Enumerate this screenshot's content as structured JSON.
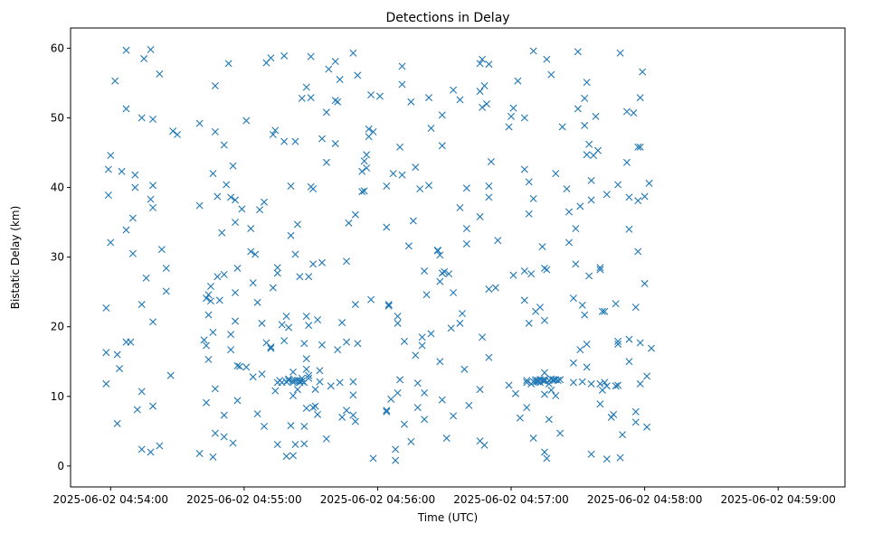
{
  "chart_data": {
    "type": "scatter",
    "title": "Detections in Delay",
    "xlabel": "Time (UTC)",
    "ylabel": "Bistatic Delay (km)",
    "x_unit": "seconds after 2025-06-02 04:54:00",
    "xlim": [
      -18,
      330
    ],
    "ylim": [
      -3,
      62.9
    ],
    "marker": "x",
    "color": "#1f77b4",
    "grid": false,
    "legend": "none",
    "x_ticks": [
      {
        "value": 0,
        "label": "2025-06-02 04:54:00"
      },
      {
        "value": 60,
        "label": "2025-06-02 04:55:00"
      },
      {
        "value": 120,
        "label": "2025-06-02 04:56:00"
      },
      {
        "value": 180,
        "label": "2025-06-02 04:57:00"
      },
      {
        "value": 240,
        "label": "2025-06-02 04:58:00"
      },
      {
        "value": 300,
        "label": "2025-06-02 04:59:00"
      }
    ],
    "y_ticks": [
      {
        "value": 0,
        "label": "0"
      },
      {
        "value": 10,
        "label": "10"
      },
      {
        "value": 20,
        "label": "20"
      },
      {
        "value": 30,
        "label": "30"
      },
      {
        "value": 40,
        "label": "40"
      },
      {
        "value": 50,
        "label": "50"
      },
      {
        "value": 60,
        "label": "60"
      }
    ],
    "points": [
      [
        -2,
        22.7
      ],
      [
        -2,
        16.3
      ],
      [
        -2,
        11.8
      ],
      [
        -1,
        42.6
      ],
      [
        -1,
        38.9
      ],
      [
        0,
        44.6
      ],
      [
        0,
        32.1
      ],
      [
        2,
        55.3
      ],
      [
        3,
        16
      ],
      [
        3,
        6.1
      ],
      [
        4,
        14
      ],
      [
        5,
        42.3
      ],
      [
        7,
        59.7
      ],
      [
        7,
        51.3
      ],
      [
        7,
        33.9
      ],
      [
        7,
        17.8
      ],
      [
        9,
        17.8
      ],
      [
        10,
        35.6
      ],
      [
        10,
        30.5
      ],
      [
        11,
        41.8
      ],
      [
        11,
        40
      ],
      [
        12,
        8.1
      ],
      [
        14,
        50
      ],
      [
        14,
        23.2
      ],
      [
        14,
        10.7
      ],
      [
        14,
        2.4
      ],
      [
        15,
        58.5
      ],
      [
        16,
        27
      ],
      [
        18,
        59.8
      ],
      [
        18,
        38.3
      ],
      [
        18,
        2
      ],
      [
        19,
        40.3
      ],
      [
        19,
        37.1
      ],
      [
        19,
        49.8
      ],
      [
        19,
        20.7
      ],
      [
        19,
        8.6
      ],
      [
        22,
        56.3
      ],
      [
        22,
        2.9
      ],
      [
        23,
        31.1
      ],
      [
        25,
        28.4
      ],
      [
        25,
        25.1
      ],
      [
        27,
        13
      ],
      [
        28,
        48.1
      ],
      [
        30,
        47.6
      ],
      [
        40,
        49.2
      ],
      [
        40,
        37.4
      ],
      [
        40,
        1.8
      ],
      [
        42,
        18.1
      ],
      [
        43,
        9.1
      ],
      [
        43,
        17.3
      ],
      [
        43,
        24.1
      ],
      [
        44,
        24.6
      ],
      [
        44,
        21.7
      ],
      [
        44,
        15.3
      ],
      [
        45,
        25.8
      ],
      [
        45,
        23.7
      ],
      [
        46,
        42
      ],
      [
        46,
        19.2
      ],
      [
        46,
        1.3
      ],
      [
        47,
        54.6
      ],
      [
        47,
        48
      ],
      [
        47,
        11.1
      ],
      [
        47,
        4.7
      ],
      [
        48,
        38.7
      ],
      [
        48,
        27.2
      ],
      [
        49,
        23.8
      ],
      [
        50,
        33.5
      ],
      [
        51,
        46.1
      ],
      [
        51,
        27.5
      ],
      [
        51,
        7.3
      ],
      [
        51,
        4.2
      ],
      [
        52,
        40.4
      ],
      [
        53,
        57.8
      ],
      [
        54,
        38.6
      ],
      [
        54,
        18.9
      ],
      [
        54,
        16.7
      ],
      [
        55,
        43.1
      ],
      [
        55,
        3.3
      ],
      [
        56,
        38.2
      ],
      [
        56,
        35
      ],
      [
        56,
        24.9
      ],
      [
        56,
        20.8
      ],
      [
        57,
        28.4
      ],
      [
        57,
        9.4
      ],
      [
        57,
        14.4
      ],
      [
        58,
        14.3
      ],
      [
        59,
        36.9
      ],
      [
        61,
        49.6
      ],
      [
        61,
        14.2
      ],
      [
        63,
        34.1
      ],
      [
        63,
        30.8
      ],
      [
        64,
        26.3
      ],
      [
        64,
        12.8
      ],
      [
        65,
        30.4
      ],
      [
        66,
        23.5
      ],
      [
        66,
        7.5
      ],
      [
        67,
        36.8
      ],
      [
        68,
        13.2
      ],
      [
        68,
        20.5
      ],
      [
        69,
        37.9
      ],
      [
        69,
        5.7
      ],
      [
        70,
        57.9
      ],
      [
        70,
        17.7
      ],
      [
        72,
        58.6
      ],
      [
        72,
        17.1
      ],
      [
        72,
        16.9
      ],
      [
        73,
        47.6
      ],
      [
        73,
        25.6
      ],
      [
        74,
        48.2
      ],
      [
        74,
        10.8
      ],
      [
        75,
        28.5
      ],
      [
        75,
        27.7
      ],
      [
        75,
        3.1
      ],
      [
        75,
        12
      ],
      [
        76,
        12.3
      ],
      [
        77,
        12
      ],
      [
        77,
        20.3
      ],
      [
        78,
        58.9
      ],
      [
        78,
        46.6
      ],
      [
        78,
        18
      ],
      [
        79,
        21.5
      ],
      [
        79,
        12.1
      ],
      [
        79,
        1.4
      ],
      [
        80,
        19.9
      ],
      [
        80,
        12.5
      ],
      [
        80,
        12.3
      ],
      [
        81,
        40.2
      ],
      [
        81,
        33.1
      ],
      [
        81,
        5.8
      ],
      [
        82,
        12.3
      ],
      [
        82,
        12
      ],
      [
        82,
        13.5
      ],
      [
        82,
        10.1
      ],
      [
        82,
        1.5
      ],
      [
        83,
        46.6
      ],
      [
        83,
        30.4
      ],
      [
        83,
        12.3
      ],
      [
        83,
        3.1
      ],
      [
        84,
        34.7
      ],
      [
        84,
        12.3
      ],
      [
        84,
        11
      ],
      [
        85,
        27.2
      ],
      [
        85,
        12.2
      ],
      [
        85,
        12
      ],
      [
        86,
        52.8
      ],
      [
        86,
        12.6
      ],
      [
        86,
        12.2
      ],
      [
        87,
        17.6
      ],
      [
        87,
        12
      ],
      [
        87,
        5.7
      ],
      [
        87,
        3.2
      ],
      [
        88,
        54.4
      ],
      [
        88,
        21.5
      ],
      [
        88,
        15.4
      ],
      [
        88,
        13.9
      ],
      [
        88,
        8.3
      ],
      [
        89,
        27.2
      ],
      [
        89,
        20.2
      ],
      [
        89,
        13
      ],
      [
        89,
        12.6
      ],
      [
        90,
        58.8
      ],
      [
        90,
        52.9
      ],
      [
        90,
        40.1
      ],
      [
        91,
        39.8
      ],
      [
        91,
        29
      ],
      [
        91,
        8.4
      ],
      [
        92,
        11
      ],
      [
        92,
        8.6
      ],
      [
        93,
        21
      ],
      [
        93,
        7.4
      ],
      [
        94,
        13.7
      ],
      [
        94,
        12.1
      ],
      [
        95,
        47
      ],
      [
        95,
        29.2
      ],
      [
        95,
        17.4
      ],
      [
        97,
        50.8
      ],
      [
        97,
        43.6
      ],
      [
        97,
        3.9
      ],
      [
        98,
        57
      ],
      [
        99,
        11.5
      ],
      [
        101,
        52.5
      ],
      [
        101,
        58.1
      ],
      [
        101,
        46.3
      ],
      [
        102,
        52.3
      ],
      [
        102,
        16.7
      ],
      [
        103,
        55.5
      ],
      [
        103,
        12
      ],
      [
        104,
        20.6
      ],
      [
        104,
        7
      ],
      [
        106,
        29.4
      ],
      [
        106,
        8
      ],
      [
        106,
        17.8
      ],
      [
        107,
        34.9
      ],
      [
        109,
        59.3
      ],
      [
        109,
        12.1
      ],
      [
        109,
        10.2
      ],
      [
        109,
        7.3
      ],
      [
        110,
        23.2
      ],
      [
        110,
        6.4
      ],
      [
        110,
        36.1
      ],
      [
        111,
        56.1
      ],
      [
        111,
        17.6
      ],
      [
        113,
        42.3
      ],
      [
        113,
        39.4
      ],
      [
        114,
        39.5
      ],
      [
        114,
        43.8
      ],
      [
        115,
        44.7
      ],
      [
        115,
        42.8
      ],
      [
        116,
        48.4
      ],
      [
        116,
        47.3
      ],
      [
        117,
        53.3
      ],
      [
        117,
        23.9
      ],
      [
        118,
        48
      ],
      [
        118,
        1.1
      ],
      [
        121,
        53.1
      ],
      [
        124,
        40.2
      ],
      [
        124,
        34.3
      ],
      [
        124,
        8
      ],
      [
        124,
        7.8
      ],
      [
        125,
        23.2
      ],
      [
        125,
        23
      ],
      [
        126,
        9.6
      ],
      [
        127,
        42
      ],
      [
        128,
        2.4
      ],
      [
        128,
        0.8
      ],
      [
        129,
        21.5
      ],
      [
        129,
        20.5
      ],
      [
        129,
        10.5
      ],
      [
        130,
        45.8
      ],
      [
        130,
        12.4
      ],
      [
        131,
        57.4
      ],
      [
        131,
        54.8
      ],
      [
        131,
        41.8
      ],
      [
        132,
        17.9
      ],
      [
        132,
        6
      ],
      [
        134,
        31.6
      ],
      [
        135,
        52.3
      ],
      [
        135,
        3.5
      ],
      [
        136,
        35.2
      ],
      [
        137,
        42.9
      ],
      [
        137,
        15.9
      ],
      [
        138,
        11.9
      ],
      [
        138,
        8.4
      ],
      [
        139,
        39.8
      ],
      [
        140,
        17.3
      ],
      [
        140,
        18.5
      ],
      [
        141,
        10.5
      ],
      [
        141,
        28
      ],
      [
        141,
        6.7
      ],
      [
        142,
        24.6
      ],
      [
        143,
        52.9
      ],
      [
        143,
        40.3
      ],
      [
        144,
        48.5
      ],
      [
        144,
        19
      ],
      [
        147,
        31
      ],
      [
        147,
        30.9
      ],
      [
        148,
        30.3
      ],
      [
        148,
        26.5
      ],
      [
        148,
        15
      ],
      [
        149,
        46
      ],
      [
        149,
        27.7
      ],
      [
        149,
        9.5
      ],
      [
        149,
        50.4
      ],
      [
        150,
        27.9
      ],
      [
        151,
        4
      ],
      [
        152,
        27.6
      ],
      [
        153,
        19.8
      ],
      [
        154,
        54
      ],
      [
        154,
        24.9
      ],
      [
        154,
        7.2
      ],
      [
        157,
        37.1
      ],
      [
        157,
        52.6
      ],
      [
        157,
        20.5
      ],
      [
        158,
        21.9
      ],
      [
        159,
        13.9
      ],
      [
        160,
        39.9
      ],
      [
        160,
        31.9
      ],
      [
        160,
        34.1
      ],
      [
        161,
        8.7
      ],
      [
        166,
        57.8
      ],
      [
        166,
        53.8
      ],
      [
        166,
        35.8
      ],
      [
        166,
        11
      ],
      [
        166,
        3.6
      ],
      [
        167,
        58.4
      ],
      [
        167,
        51.5
      ],
      [
        167,
        18.5
      ],
      [
        168,
        54.6
      ],
      [
        168,
        3
      ],
      [
        169,
        52
      ],
      [
        170,
        57.7
      ],
      [
        170,
        40.2
      ],
      [
        170,
        38.6
      ],
      [
        170,
        25.4
      ],
      [
        170,
        15.6
      ],
      [
        171,
        43.7
      ],
      [
        173,
        25.6
      ],
      [
        174,
        32.4
      ],
      [
        179,
        48.7
      ],
      [
        179,
        11.6
      ],
      [
        180,
        50.2
      ],
      [
        181,
        51.4
      ],
      [
        181,
        27.4
      ],
      [
        182,
        10.4
      ],
      [
        183,
        55.3
      ],
      [
        184,
        6.9
      ],
      [
        186,
        50
      ],
      [
        186,
        42.6
      ],
      [
        186,
        28
      ],
      [
        186,
        23.8
      ],
      [
        187,
        12.3
      ],
      [
        187,
        12
      ],
      [
        187,
        8.4
      ],
      [
        188,
        40.8
      ],
      [
        188,
        36.2
      ],
      [
        188,
        20.5
      ],
      [
        189,
        11.8
      ],
      [
        189,
        27.6
      ],
      [
        190,
        59.6
      ],
      [
        190,
        38.4
      ],
      [
        190,
        12.1
      ],
      [
        190,
        4
      ],
      [
        191,
        12.1
      ],
      [
        191,
        22.2
      ],
      [
        191,
        12.4
      ],
      [
        192,
        12.1
      ],
      [
        192,
        12.3
      ],
      [
        193,
        22.8
      ],
      [
        193,
        12.4
      ],
      [
        193,
        12
      ],
      [
        194,
        31.5
      ],
      [
        194,
        12.3
      ],
      [
        195,
        12.2
      ],
      [
        195,
        28.4
      ],
      [
        195,
        20.9
      ],
      [
        195,
        13.4
      ],
      [
        195,
        10.3
      ],
      [
        195,
        12.4
      ],
      [
        195,
        2
      ],
      [
        196,
        58.4
      ],
      [
        196,
        28.2
      ],
      [
        196,
        1.1
      ],
      [
        197,
        12.3
      ],
      [
        197,
        11.8
      ],
      [
        197,
        6.7
      ],
      [
        198,
        56.2
      ],
      [
        198,
        10.9
      ],
      [
        198,
        12.5
      ],
      [
        199,
        12.4
      ],
      [
        199,
        12.3
      ],
      [
        200,
        42
      ],
      [
        200,
        10.1
      ],
      [
        200,
        12.4
      ],
      [
        201,
        12.3
      ],
      [
        202,
        12.4
      ],
      [
        202,
        4.7
      ],
      [
        203,
        48.7
      ],
      [
        205,
        39.8
      ],
      [
        206,
        32.1
      ],
      [
        206,
        36.5
      ],
      [
        208,
        14.8
      ],
      [
        208,
        24.1
      ],
      [
        208,
        12
      ],
      [
        209,
        29
      ],
      [
        209,
        34.1
      ],
      [
        210,
        51.3
      ],
      [
        210,
        59.5
      ],
      [
        211,
        16.7
      ],
      [
        211,
        37.3
      ],
      [
        212,
        12.1
      ],
      [
        212,
        23.1
      ],
      [
        213,
        48.9
      ],
      [
        213,
        52.8
      ],
      [
        213,
        21.7
      ],
      [
        214,
        55.1
      ],
      [
        214,
        44.7
      ],
      [
        214,
        17.5
      ],
      [
        214,
        14.2
      ],
      [
        215,
        46.2
      ],
      [
        215,
        27.3
      ],
      [
        216,
        41
      ],
      [
        216,
        38.2
      ],
      [
        216,
        1.7
      ],
      [
        216,
        11.8
      ],
      [
        217,
        44.6
      ],
      [
        218,
        50.2
      ],
      [
        219,
        45.3
      ],
      [
        220,
        28.5
      ],
      [
        220,
        28.2
      ],
      [
        220,
        8.9
      ],
      [
        220,
        11.8
      ],
      [
        221,
        22.2
      ],
      [
        221,
        10.9
      ],
      [
        222,
        12
      ],
      [
        222,
        22.2
      ],
      [
        223,
        39
      ],
      [
        223,
        1
      ],
      [
        223,
        11.5
      ],
      [
        225,
        7
      ],
      [
        226,
        7.4
      ],
      [
        227,
        23.3
      ],
      [
        227,
        11.5
      ],
      [
        228,
        40.4
      ],
      [
        228,
        11.6
      ],
      [
        228,
        17.9
      ],
      [
        228,
        17.5
      ],
      [
        229,
        59.3
      ],
      [
        229,
        1.2
      ],
      [
        230,
        4.5
      ],
      [
        232,
        43.6
      ],
      [
        232,
        50.9
      ],
      [
        233,
        38.6
      ],
      [
        233,
        34
      ],
      [
        233,
        18.2
      ],
      [
        233,
        15
      ],
      [
        235,
        50.7
      ],
      [
        236,
        22.8
      ],
      [
        236,
        7.8
      ],
      [
        236,
        6.3
      ],
      [
        237,
        45.8
      ],
      [
        237,
        38.1
      ],
      [
        237,
        30.8
      ],
      [
        238,
        45.8
      ],
      [
        238,
        52.9
      ],
      [
        238,
        17.7
      ],
      [
        238,
        11.8
      ],
      [
        239,
        56.6
      ],
      [
        240,
        38.7
      ],
      [
        240,
        26.2
      ],
      [
        241,
        5.6
      ],
      [
        241,
        12.9
      ],
      [
        242,
        40.6
      ],
      [
        243,
        16.9
      ]
    ]
  }
}
